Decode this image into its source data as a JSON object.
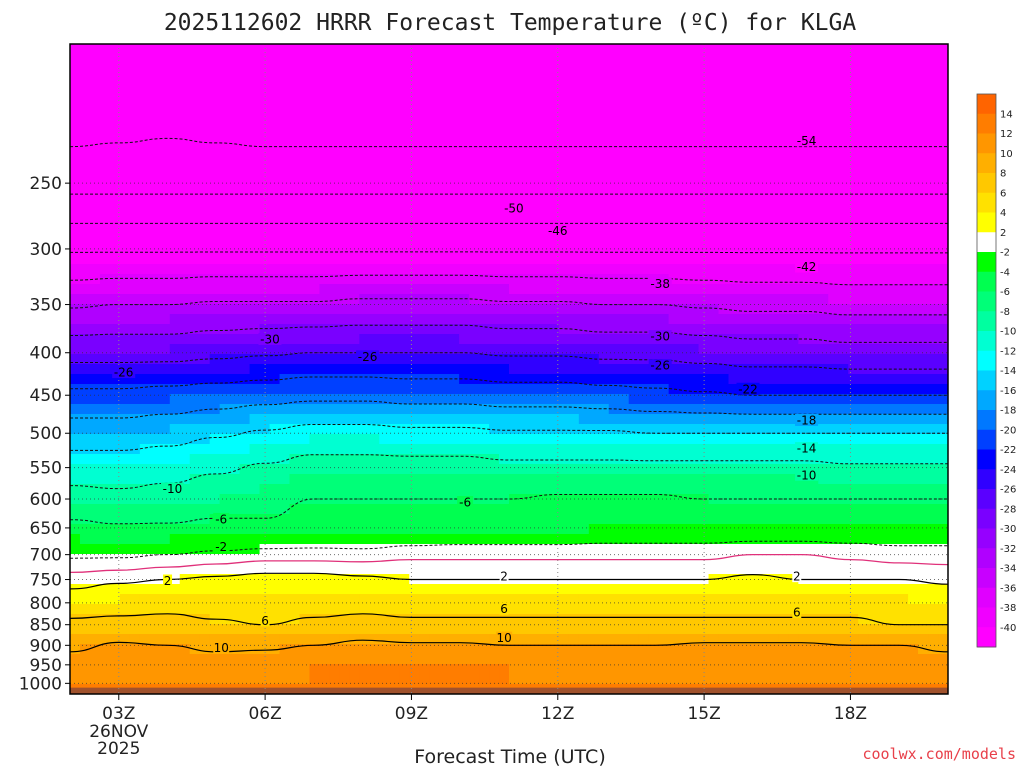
{
  "chart_data": {
    "type": "heatmap",
    "title": "2025112602 HRRR Forecast Temperature (ºC) for KLGA",
    "xlabel": "Forecast Time (UTC)",
    "ylabel": "",
    "credit": "coolwx.com/models",
    "colors": {
      "credit": "#e8404a",
      "freezing_line": "#e0307a"
    },
    "xlim": [
      2.0,
      20.0
    ],
    "ylim": [
      1030,
      170
    ],
    "x_ticks": [
      {
        "x": 3,
        "label": "03Z",
        "sub1": "26NOV",
        "sub2": "2025"
      },
      {
        "x": 6,
        "label": "06Z"
      },
      {
        "x": 9,
        "label": "09Z"
      },
      {
        "x": 12,
        "label": "12Z"
      },
      {
        "x": 15,
        "label": "15Z"
      },
      {
        "x": 18,
        "label": "18Z"
      }
    ],
    "y_ticks": [
      250,
      300,
      350,
      400,
      450,
      500,
      550,
      600,
      650,
      700,
      750,
      800,
      850,
      900,
      950,
      1000
    ],
    "hours": [
      2,
      3,
      4,
      5,
      6,
      7,
      8,
      9,
      10,
      11,
      12,
      13,
      14,
      15,
      16,
      17,
      18,
      19,
      20
    ],
    "temperature_profiles": [
      {
        "p": 1000,
        "t": [
          12,
          12,
          12,
          12,
          12,
          12,
          12,
          12,
          12,
          12,
          12,
          12,
          12,
          12,
          12,
          12,
          12,
          12,
          12
        ]
      },
      {
        "p": 950,
        "t": [
          11,
          11,
          11,
          11,
          11.5,
          12,
          12,
          12.5,
          12,
          12,
          11.5,
          11.5,
          11.5,
          11.5,
          11.5,
          11.5,
          11.5,
          11,
          11
        ]
      },
      {
        "p": 900,
        "t": [
          9.5,
          10.5,
          10,
          9.5,
          9.5,
          10,
          11,
          10.5,
          10.5,
          10,
          10,
          10,
          10,
          10.5,
          10.5,
          10.5,
          10,
          10,
          9.5
        ]
      },
      {
        "p": 850,
        "t": [
          7,
          7,
          7,
          6.5,
          6,
          6.5,
          7,
          6.5,
          6.5,
          6.5,
          6.5,
          6.5,
          6.5,
          6.5,
          6.5,
          6.5,
          6.5,
          6,
          6
        ]
      },
      {
        "p": 800,
        "t": [
          3.5,
          4.5,
          5,
          4.5,
          4.5,
          5,
          5,
          5,
          5,
          5,
          5,
          5,
          5,
          5,
          5,
          5,
          5,
          4.5,
          4
        ]
      },
      {
        "p": 750,
        "t": [
          1,
          1.5,
          2,
          2.5,
          3,
          3,
          2.5,
          2,
          2,
          2,
          2,
          2,
          2,
          2,
          2.5,
          2,
          2,
          2,
          1.5
        ]
      },
      {
        "p": 700,
        "t": [
          -2.5,
          -2.5,
          -2,
          -1.5,
          -1,
          -1,
          -1,
          -0.5,
          -0.5,
          -0.5,
          -0.5,
          -0.5,
          -0.5,
          -0.5,
          0,
          0,
          -0.5,
          -1,
          -1
        ]
      },
      {
        "p": 650,
        "t": [
          -5,
          -5.5,
          -5.5,
          -5,
          -5.5,
          -5,
          -5.5,
          -5,
          -4.5,
          -4.5,
          -4.5,
          -4,
          -4,
          -4,
          -4,
          -4,
          -4,
          -4,
          -4
        ]
      },
      {
        "p": 600,
        "t": [
          -8.5,
          -9,
          -8.5,
          -8,
          -7,
          -6,
          -6,
          -6,
          -6,
          -6,
          -5.5,
          -5.5,
          -5.5,
          -6,
          -6,
          -6,
          -6,
          -6,
          -6
        ]
      },
      {
        "p": 550,
        "t": [
          -12,
          -12,
          -11.5,
          -10.5,
          -9.5,
          -8.5,
          -8.5,
          -8.5,
          -8.5,
          -9,
          -9,
          -9,
          -9,
          -9,
          -9,
          -9,
          -9.5,
          -9.5,
          -9.5
        ]
      },
      {
        "p": 500,
        "t": [
          -16,
          -16,
          -15.5,
          -14.5,
          -13.5,
          -12.5,
          -12.5,
          -13,
          -13,
          -13.5,
          -13.5,
          -13.5,
          -14,
          -14,
          -14,
          -14,
          -14,
          -14,
          -14
        ]
      },
      {
        "p": 450,
        "t": [
          -21,
          -21,
          -20.5,
          -20,
          -19.5,
          -19,
          -19,
          -19.5,
          -19.5,
          -20,
          -20,
          -20.5,
          -21,
          -21.5,
          -22,
          -22,
          -22,
          -22,
          -22
        ]
      },
      {
        "p": 400,
        "t": [
          -27.5,
          -27.5,
          -27.5,
          -27,
          -26.5,
          -26,
          -26,
          -26,
          -26,
          -26.5,
          -26.5,
          -27,
          -27,
          -27.5,
          -28,
          -28,
          -28.5,
          -28.5,
          -28.5
        ]
      },
      {
        "p": 350,
        "t": [
          -34.5,
          -34,
          -34,
          -33.5,
          -33.5,
          -33.5,
          -33,
          -33,
          -33,
          -33.5,
          -33.5,
          -34,
          -34,
          -34.5,
          -35,
          -35,
          -35.5,
          -35.5,
          -35.5
        ]
      },
      {
        "p": 300,
        "t": [
          -42.5,
          -42.5,
          -42.5,
          -42.5,
          -42.5,
          -42.5,
          -42.5,
          -42.5,
          -42.5,
          -42.5,
          -42.5,
          -42.5,
          -42.5,
          -42.5,
          -42.5,
          -42.5,
          -42.5,
          -42.5,
          -42.5
        ]
      },
      {
        "p": 250,
        "t": [
          -51.5,
          -51.5,
          -51.5,
          -51.5,
          -51.5,
          -51.5,
          -51.5,
          -51.5,
          -51.5,
          -51.5,
          -51.5,
          -51.5,
          -51.5,
          -51.5,
          -51.5,
          -51.5,
          -51.5,
          -51.5,
          -51.5
        ]
      },
      {
        "p": 200,
        "t": [
          -57,
          -56.5,
          -56,
          -56.5,
          -57,
          -57,
          -57,
          -57,
          -57,
          -57,
          -57,
          -57,
          -57,
          -57,
          -57,
          -57,
          -57,
          -57,
          -57
        ]
      }
    ],
    "colorbar": {
      "levels": [
        -40,
        -38,
        -36,
        -34,
        -32,
        -30,
        -28,
        -26,
        -24,
        -22,
        -20,
        -18,
        -16,
        -14,
        -12,
        -10,
        -8,
        -6,
        -4,
        -2,
        2,
        4,
        6,
        8,
        10,
        12,
        14
      ],
      "colors": [
        "#ff00ff",
        "#f000ff",
        "#e000ff",
        "#c800ff",
        "#b000ff",
        "#9600ff",
        "#7a00ff",
        "#5a00ff",
        "#3000ff",
        "#0000ff",
        "#0040ff",
        "#0078ff",
        "#00a8ff",
        "#00d2ff",
        "#00ffff",
        "#00ffd2",
        "#00ffa0",
        "#00ff78",
        "#00ff50",
        "#00ff00",
        "#ffffff",
        "#ffff00",
        "#ffe100",
        "#ffc800",
        "#ffaf00",
        "#ff9600",
        "#ff7d00",
        "#ff6400"
      ],
      "labels": [
        "14",
        "12",
        "10",
        "8",
        "6",
        "4",
        "2",
        "-2",
        "-4",
        "-6",
        "-8",
        "-10",
        "-12",
        "-14",
        "-16",
        "-18",
        "-20",
        "-22",
        "-24",
        "-26",
        "-28",
        "-30",
        "-32",
        "-34",
        "-36",
        "-38",
        "-40"
      ]
    },
    "contours": {
      "dashed_levels": [
        -58,
        -54,
        -50,
        -46,
        -42,
        -38,
        -34,
        -30,
        -26,
        -22,
        -18,
        -14,
        -10,
        -6,
        -2
      ],
      "solid_levels": [
        2,
        6,
        10
      ],
      "freezing_level": 0
    },
    "contour_labels": [
      {
        "text": "-54",
        "h": 17.1,
        "p": 222
      },
      {
        "text": "-50",
        "h": 11.1,
        "p": 268
      },
      {
        "text": "-46",
        "h": 12.0,
        "p": 285
      },
      {
        "text": "-42",
        "h": 17.1,
        "p": 315
      },
      {
        "text": "-38",
        "h": 14.1,
        "p": 330
      },
      {
        "text": "-30",
        "h": 6.1,
        "p": 385
      },
      {
        "text": "-30",
        "h": 14.1,
        "p": 382
      },
      {
        "text": "-26",
        "h": 3.1,
        "p": 422
      },
      {
        "text": "-26",
        "h": 8.1,
        "p": 404
      },
      {
        "text": "-26",
        "h": 14.1,
        "p": 414
      },
      {
        "text": "-22",
        "h": 15.9,
        "p": 442
      },
      {
        "text": "-18",
        "h": 17.1,
        "p": 482
      },
      {
        "text": "-14",
        "h": 17.1,
        "p": 521
      },
      {
        "text": "-10",
        "h": 4.1,
        "p": 583
      },
      {
        "text": "-10",
        "h": 17.1,
        "p": 561
      },
      {
        "text": "-6",
        "h": 5.1,
        "p": 634
      },
      {
        "text": "-6",
        "h": 10.1,
        "p": 605
      },
      {
        "text": "-2",
        "h": 5.1,
        "p": 684
      },
      {
        "text": "2",
        "h": 4.0,
        "p": 752
      },
      {
        "text": "2",
        "h": 10.9,
        "p": 743
      },
      {
        "text": "2",
        "h": 16.9,
        "p": 743
      },
      {
        "text": "6",
        "h": 6.0,
        "p": 840
      },
      {
        "text": "6",
        "h": 10.9,
        "p": 813
      },
      {
        "text": "6",
        "h": 16.9,
        "p": 821
      },
      {
        "text": "10",
        "h": 5.1,
        "p": 905
      },
      {
        "text": "10",
        "h": 10.9,
        "p": 881
      }
    ]
  }
}
